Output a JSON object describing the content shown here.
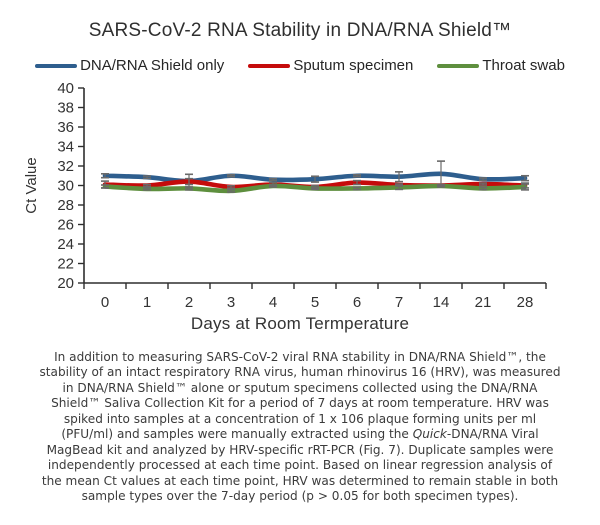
{
  "title": "SARS-CoV-2 RNA Stability in DNA/RNA Shield™",
  "xaxis_title": "Days at Room Termperature",
  "yaxis_title": "Ct Value",
  "legend": [
    {
      "label": "DNA/RNA Shield only",
      "color": "#2E5E8E"
    },
    {
      "label": "Sputum specimen",
      "color": "#C50B0B"
    },
    {
      "label": "Throat swab",
      "color": "#5E8F3E"
    }
  ],
  "chart_data": {
    "type": "line",
    "title": "SARS-CoV-2 RNA Stability in DNA/RNA Shield™",
    "xlabel": "Days at Room Termperature",
    "ylabel": "Ct Value",
    "ylim": [
      20,
      40
    ],
    "ytick_step": 2,
    "grid": false,
    "legend_position": "top",
    "error_bar_color": "#6a6a6a",
    "categories": [
      "0",
      "1",
      "2",
      "3",
      "4",
      "5",
      "6",
      "7",
      "14",
      "21",
      "28"
    ],
    "series": [
      {
        "name": "DNA/RNA Shield only",
        "color": "#2E5E8E",
        "values": [
          31.0,
          30.85,
          30.45,
          31.0,
          30.6,
          30.65,
          31.0,
          30.9,
          31.2,
          30.65,
          30.75
        ],
        "errors": [
          0.2,
          0.12,
          0.7,
          0.1,
          0.1,
          0.3,
          0.1,
          0.5,
          1.3,
          0.12,
          0.25
        ]
      },
      {
        "name": "Sputum specimen",
        "color": "#C50B0B",
        "values": [
          30.1,
          30.0,
          30.4,
          29.85,
          30.1,
          29.85,
          30.3,
          30.05,
          30.0,
          30.15,
          30.0
        ],
        "errors": [
          0.35,
          0.1,
          0.3,
          0.12,
          0.2,
          0.15,
          0.2,
          0.1,
          0.1,
          0.1,
          0.25
        ]
      },
      {
        "name": "Throat swab",
        "color": "#5E8F3E",
        "values": [
          29.9,
          29.65,
          29.7,
          29.45,
          29.95,
          29.7,
          29.7,
          29.8,
          29.95,
          29.7,
          29.85
        ],
        "errors": [
          0.15,
          0.1,
          0.15,
          0.12,
          0.1,
          0.1,
          0.12,
          0.2,
          0.1,
          0.12,
          0.3
        ]
      }
    ]
  },
  "caption": {
    "part1": "In addition to measuring SARS-CoV-2 viral RNA stability in DNA/RNA Shield™, the stability of an intact respiratory RNA virus, human rhinovirus 16 (HRV), was measured in DNA/RNA Shield™ alone or sputum specimens collected using the DNA/RNA Shield™ Saliva Collection Kit for a period of 7 days at room temperature. HRV was spiked into samples at a concentration of 1 x 106 plaque forming units per ml (PFU/ml) and samples were manually extracted using the ",
    "italic_word": "Quick",
    "part2": "-DNA/RNA Viral MagBead kit and analyzed by HRV-specific rRT-PCR (Fig. 7). Duplicate samples were independently processed at each time point. Based on linear regression analysis of the mean Ct values at each time point, HRV was determined to remain stable in both sample types over the 7-day period (p > 0.05 for both specimen types)."
  }
}
